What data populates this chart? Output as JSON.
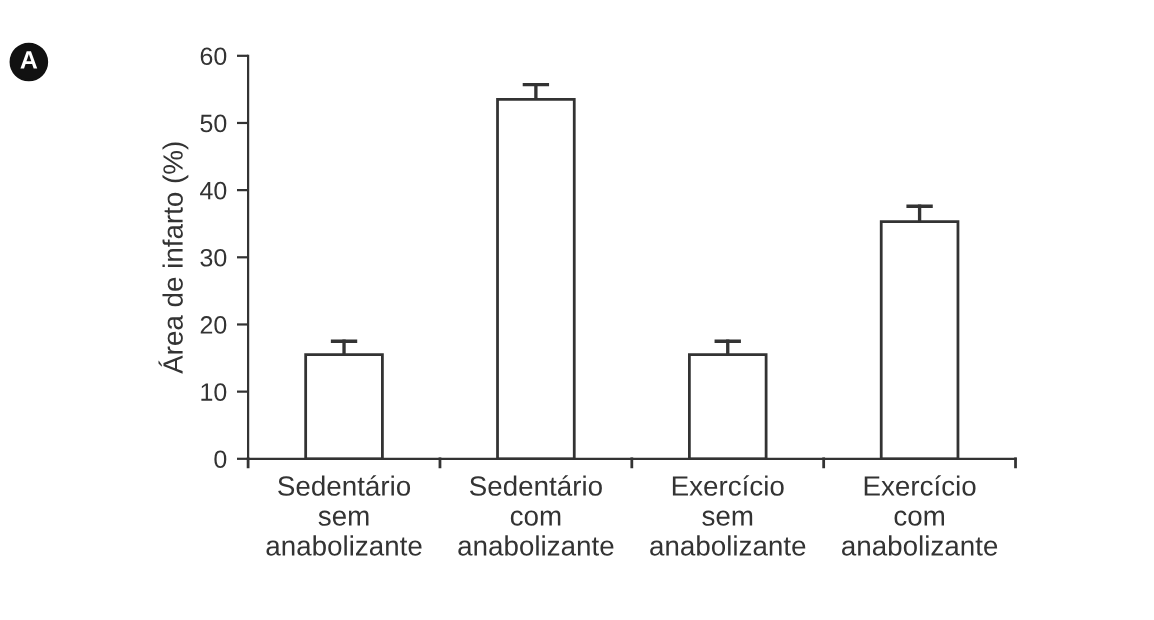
{
  "chart_data": {
    "type": "bar",
    "ylabel": "Área de infarto (%)",
    "annotations": [
      "A"
    ],
    "categories": [
      "Sedentário\nsem\nanabolizante",
      "Sedentário\ncom\nanabolizante",
      "Exercício\nsem\nanabolizante",
      "Exercício\ncom\nanabolizante"
    ],
    "values": [
      15.5,
      53.5,
      15.5,
      35.3
    ],
    "errors": [
      [
        15.5,
        17.5
      ],
      [
        53.5,
        55.7
      ],
      [
        15.5,
        17.5
      ],
      [
        35.3,
        37.6
      ]
    ],
    "color": "#ffffff",
    "ylim": [
      0,
      60
    ],
    "yticks": [
      0,
      10,
      20,
      30,
      40,
      50,
      60
    ],
    "grid": false,
    "legend": false
  }
}
